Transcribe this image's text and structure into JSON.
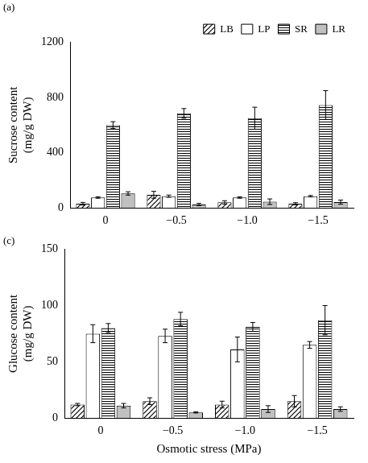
{
  "chart_data": [
    {
      "type": "bar",
      "title": "(a)",
      "y_label": [
        "Sucrose content",
        "(mg/g DW)"
      ],
      "categories": [
        "0",
        "−0.5",
        "−1.0",
        "−1.5"
      ],
      "series": [
        {
          "name": "LB",
          "color": "#ffffff",
          "values": [
            30,
            95,
            40,
            30
          ],
          "errors": [
            10,
            25,
            12,
            8
          ]
        },
        {
          "name": "LP",
          "color": "#ffffff",
          "values": [
            75,
            85,
            75,
            85
          ],
          "errors": [
            5,
            8,
            5,
            5
          ]
        },
        {
          "name": "SR",
          "color": "#ffffff",
          "values": [
            600,
            685,
            650,
            745
          ],
          "errors": [
            25,
            35,
            80,
            105
          ]
        },
        {
          "name": "LR",
          "color": "#c0c0c0",
          "values": [
            105,
            25,
            45,
            42
          ],
          "errors": [
            12,
            8,
            20,
            15
          ]
        }
      ],
      "ylim": [
        0,
        1200
      ],
      "yticks": [
        0,
        400,
        800,
        1200
      ],
      "grid": false,
      "legend": "top"
    },
    {
      "type": "bar",
      "title": "(c)",
      "y_label": [
        "Glucose content",
        "(mg/g DW)"
      ],
      "x_label": "Osmotic stress (MPa)",
      "categories": [
        "0",
        "−0.5",
        "−1.0",
        "−1.5"
      ],
      "series": [
        {
          "name": "LB",
          "color": "#ffffff",
          "values": [
            12,
            15,
            12,
            15
          ],
          "errors": [
            1,
            3,
            3,
            5
          ]
        },
        {
          "name": "LP",
          "color": "#ffffff",
          "values": [
            75,
            73,
            61,
            65
          ],
          "errors": [
            8,
            6,
            11,
            3
          ]
        },
        {
          "name": "SR",
          "color": "#ffffff",
          "values": [
            80,
            88,
            81,
            87
          ],
          "errors": [
            4,
            6,
            4,
            13
          ]
        },
        {
          "name": "LR",
          "color": "#c0c0c0",
          "values": [
            11,
            5,
            8,
            8
          ],
          "errors": [
            2,
            0.5,
            3,
            2
          ]
        }
      ],
      "ylim": [
        0,
        150
      ],
      "yticks": [
        0,
        50,
        100,
        150
      ],
      "grid": false
    }
  ]
}
